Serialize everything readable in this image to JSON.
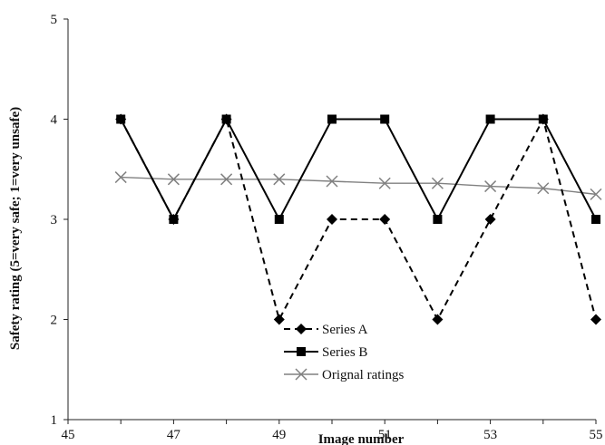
{
  "chart_data": {
    "type": "line",
    "title": "",
    "xlabel": "Image number",
    "ylabel": "Safety rating (5=very safe; 1=very unsafe)",
    "xlim": [
      45,
      55
    ],
    "ylim": [
      1,
      5
    ],
    "xticks": [
      45,
      47,
      49,
      51,
      53,
      55
    ],
    "yticks": [
      1,
      2,
      3,
      4,
      5
    ],
    "x": [
      46,
      47,
      48,
      49,
      50,
      51,
      52,
      53,
      54,
      55
    ],
    "grid": false,
    "legend_position": "bottom-center",
    "series": [
      {
        "name": "Series A",
        "values": [
          4,
          3,
          4,
          2,
          3,
          3,
          2,
          3,
          4,
          2
        ],
        "color": "#000000",
        "line_style": "dashed",
        "marker": "diamond"
      },
      {
        "name": "Series B",
        "values": [
          4,
          3,
          4,
          3,
          4,
          4,
          3,
          4,
          4,
          3
        ],
        "color": "#000000",
        "line_style": "solid",
        "marker": "square"
      },
      {
        "name": "Orignal ratings",
        "values": [
          3.42,
          3.4,
          3.4,
          3.4,
          3.38,
          3.36,
          3.36,
          3.33,
          3.31,
          3.25
        ],
        "color": "#808080",
        "line_style": "solid",
        "marker": "x"
      }
    ]
  }
}
